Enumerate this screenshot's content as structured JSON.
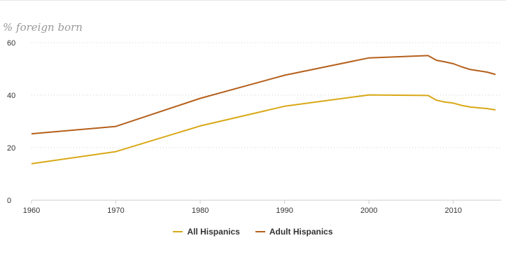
{
  "colors": {
    "all": "#d9a817",
    "adult": "#b5601c",
    "grid": "#d0d0d0",
    "text": "#333333"
  },
  "chart_data": {
    "type": "line",
    "ylabel": "% foreign born",
    "ylim": [
      0,
      60
    ],
    "xlim": [
      1960,
      2015
    ],
    "x_ticks": [
      1960,
      1970,
      1980,
      1990,
      2000,
      2010
    ],
    "y_ticks": [
      0,
      20,
      40,
      60
    ],
    "grid": true,
    "legend_position": "bottom-center",
    "series": [
      {
        "name": "All Hispanics",
        "color": "#d9a817",
        "x": [
          1960,
          1970,
          1980,
          1990,
          2000,
          2007,
          2008,
          2009,
          2010,
          2011,
          2012,
          2013,
          2014,
          2015
        ],
        "values": [
          13.9,
          18.5,
          28.3,
          35.8,
          40.1,
          39.9,
          38.1,
          37.4,
          37.0,
          36.1,
          35.5,
          35.2,
          34.9,
          34.4
        ]
      },
      {
        "name": "Adult Hispanics",
        "color": "#b5601c",
        "x": [
          1960,
          1970,
          1980,
          1990,
          2000,
          2007,
          2008,
          2009,
          2010,
          2011,
          2012,
          2013,
          2014,
          2015
        ],
        "values": [
          25.3,
          28.1,
          38.8,
          47.6,
          54.2,
          55.1,
          53.3,
          52.7,
          52.0,
          50.8,
          49.8,
          49.3,
          48.8,
          47.9
        ]
      }
    ]
  }
}
